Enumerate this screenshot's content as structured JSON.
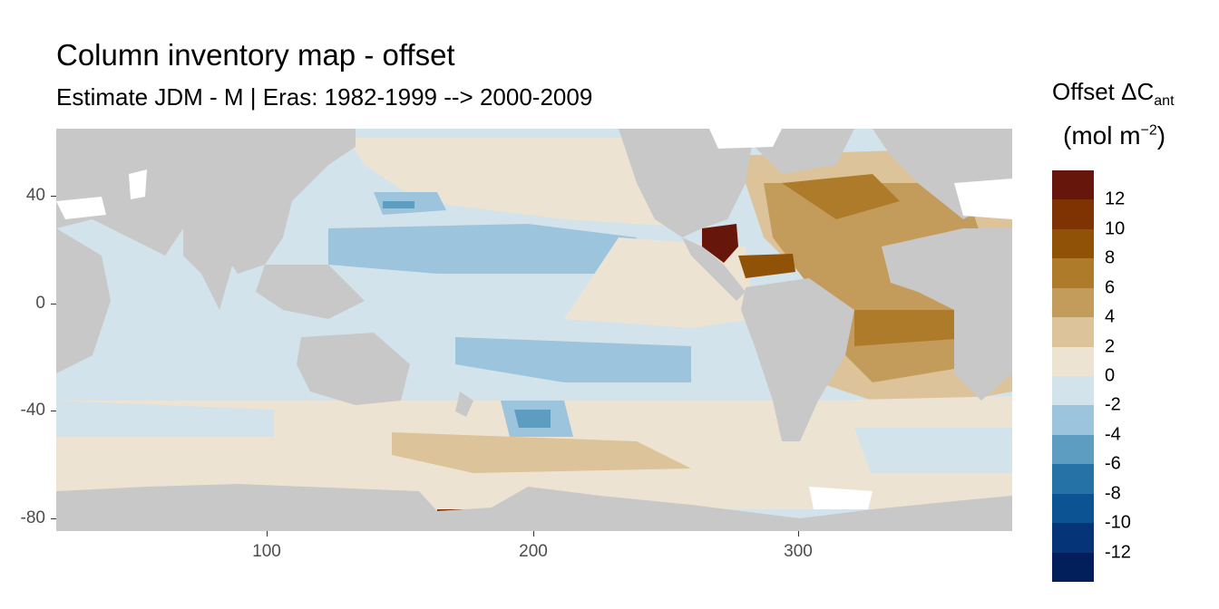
{
  "title": "Column inventory map - offset",
  "subtitle": "Estimate JDM - M | Eras: 1982-1999 --> 2000-2009",
  "legend": {
    "title_main": "Offset ΔC",
    "title_sub": "ant",
    "unit_prefix": "(mol m",
    "unit_sup": "−2",
    "unit_suffix": ")",
    "labels": [
      "12",
      "10",
      "8",
      "6",
      "4",
      "2",
      "0",
      "-2",
      "-4",
      "-6",
      "-8",
      "-10",
      "-12"
    ],
    "colors": [
      "#67160b",
      "#7f3303",
      "#8f5207",
      "#ae7b2a",
      "#c39c5c",
      "#dcc399",
      "#ede3d2",
      "#d3e3eb",
      "#9cc4dc",
      "#5c9dc1",
      "#2472a6",
      "#0b5393",
      "#063479",
      "#031f5b"
    ]
  },
  "x_axis": {
    "ticks": [
      "100",
      "200",
      "300"
    ]
  },
  "y_axis": {
    "ticks": [
      "40",
      "0",
      "-40",
      "-80"
    ]
  },
  "map": {
    "land_color": "#c8c8c8",
    "missing_color": "#ffffff"
  }
}
